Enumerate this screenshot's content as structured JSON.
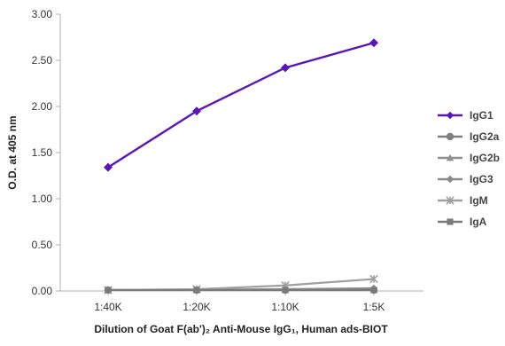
{
  "chart_data": {
    "type": "line",
    "title": "",
    "xlabel": "Dilution of Goat F(ab')₂ Anti-Mouse IgG₁, Human ads-BIOT",
    "ylabel": "O.D. at 405 nm",
    "categories": [
      "1:40K",
      "1:20K",
      "1:10K",
      "1:5K"
    ],
    "ylim": [
      0,
      3.0
    ],
    "yticks": [
      "0.00",
      "0.50",
      "1.00",
      "1.50",
      "2.00",
      "2.50",
      "3.00"
    ],
    "grid": false,
    "legend_position": "right",
    "series": [
      {
        "name": "IgG1",
        "values": [
          1.34,
          1.95,
          2.42,
          2.69
        ],
        "color": "#5a16b8",
        "marker": "diamond"
      },
      {
        "name": "IgG2a",
        "values": [
          0.01,
          0.01,
          0.01,
          0.01
        ],
        "color": "#808080",
        "marker": "circle"
      },
      {
        "name": "IgG2b",
        "values": [
          0.01,
          0.01,
          0.02,
          0.02
        ],
        "color": "#909090",
        "marker": "triangle"
      },
      {
        "name": "IgG3",
        "values": [
          0.01,
          0.01,
          0.02,
          0.03
        ],
        "color": "#8a8a8a",
        "marker": "diamond"
      },
      {
        "name": "IgM",
        "values": [
          0.01,
          0.02,
          0.06,
          0.13
        ],
        "color": "#a0a0a0",
        "marker": "asterisk"
      },
      {
        "name": "IgA",
        "values": [
          0.01,
          0.01,
          0.01,
          0.01
        ],
        "color": "#7a7a7a",
        "marker": "square"
      }
    ]
  }
}
